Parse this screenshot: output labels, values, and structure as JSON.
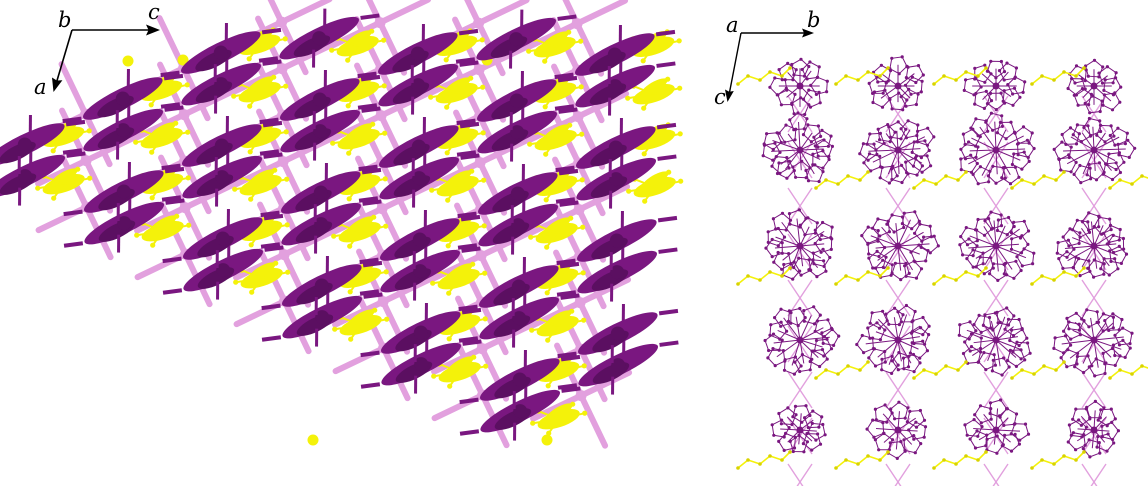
{
  "colors": {
    "host": "#7a1780",
    "bridge": "#e2a0de",
    "guest": "#f4f20a",
    "axes": "#000000"
  },
  "left_panel": {
    "axes": {
      "origin_label": "b",
      "horizontal_label": "c",
      "down_label": "a"
    }
  },
  "right_panel": {
    "axes": {
      "origin_label": "a",
      "horizontal_label": "b",
      "down_label": "c"
    }
  }
}
